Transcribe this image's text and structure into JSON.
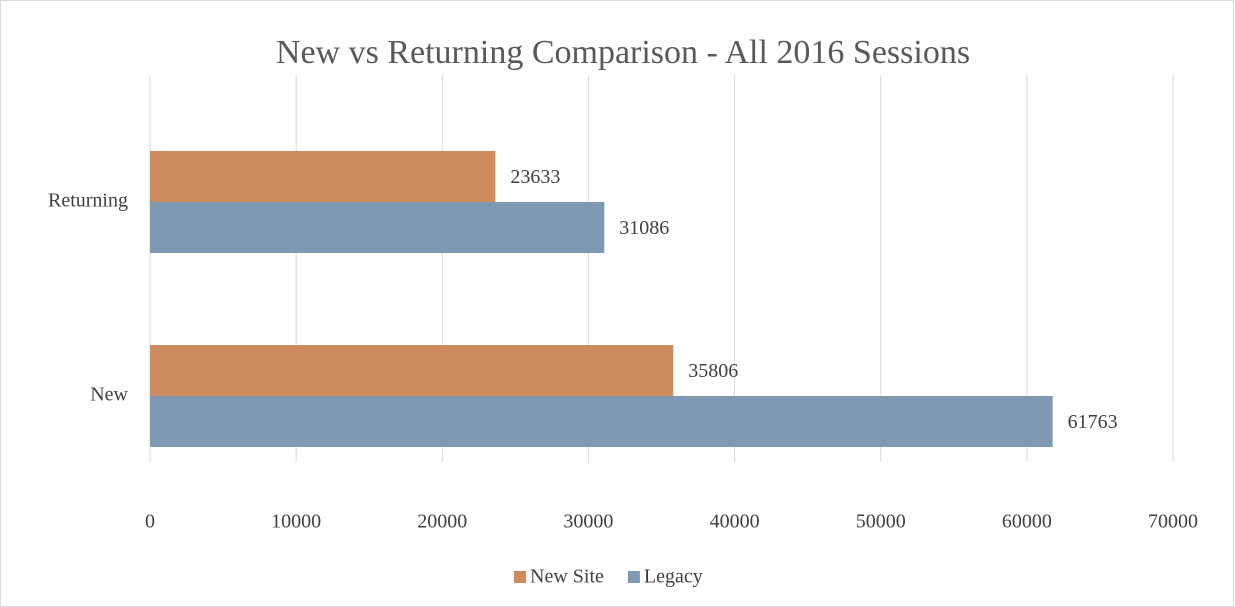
{
  "chart_data": {
    "type": "hbar",
    "title": "New vs Returning Comparison - All 2016 Sessions",
    "categories": [
      "Returning",
      "New"
    ],
    "series": [
      {
        "name": "New Site",
        "color": "#cd8b5e",
        "values": [
          23633,
          35806
        ]
      },
      {
        "name": "Legacy",
        "color": "#7f99b2",
        "values": [
          31086,
          61763
        ]
      }
    ],
    "xlim": [
      0,
      70000
    ],
    "xticks": [
      0,
      10000,
      20000,
      30000,
      40000,
      50000,
      60000,
      70000
    ],
    "grid": true,
    "legend": "bottom"
  }
}
